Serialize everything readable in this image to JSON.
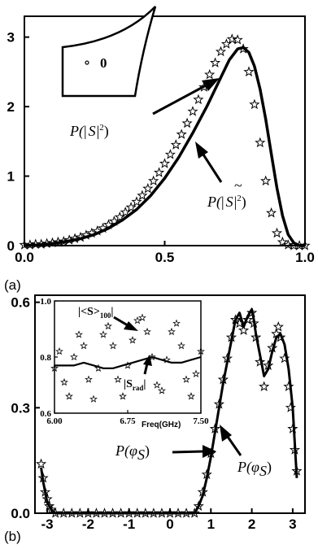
{
  "chart_data": [
    {
      "panel": "(a)",
      "type": "line",
      "xlim": [
        0.0,
        1.0
      ],
      "ylim": [
        0,
        3.3
      ],
      "xticks": [
        "0.0",
        "0.5",
        "1.0"
      ],
      "yticks": [
        "0",
        "1",
        "2",
        "3"
      ],
      "grid": false,
      "annotations": {
        "curve_label_1": [
          "P(",
          "|",
          "S",
          "|",
          "2",
          ")"
        ],
        "curve_label_2": [
          "P(",
          "|",
          "S",
          "|",
          "2",
          ")"
        ],
        "inset_label": "0",
        "tilde": "~"
      },
      "series": [
        {
          "style": "stars",
          "x": [
            0.0,
            0.02,
            0.04,
            0.06,
            0.08,
            0.1,
            0.12,
            0.14,
            0.16,
            0.18,
            0.2,
            0.22,
            0.24,
            0.26,
            0.28,
            0.3,
            0.32,
            0.34,
            0.36,
            0.38,
            0.4,
            0.42,
            0.44,
            0.46,
            0.48,
            0.5,
            0.52,
            0.54,
            0.56,
            0.58,
            0.6,
            0.62,
            0.64,
            0.66,
            0.68,
            0.7,
            0.72,
            0.74,
            0.76,
            0.78,
            0.8,
            0.82,
            0.84,
            0.86,
            0.88,
            0.9,
            0.92,
            0.94,
            0.96,
            0.98,
            1.0
          ],
          "y": [
            0.01,
            0.01,
            0.02,
            0.02,
            0.03,
            0.04,
            0.05,
            0.06,
            0.08,
            0.1,
            0.12,
            0.15,
            0.18,
            0.21,
            0.25,
            0.3,
            0.35,
            0.41,
            0.48,
            0.55,
            0.63,
            0.72,
            0.82,
            0.93,
            1.05,
            1.18,
            1.31,
            1.45,
            1.6,
            1.76,
            1.93,
            2.1,
            2.28,
            2.46,
            2.63,
            2.79,
            2.9,
            2.97,
            2.96,
            2.83,
            2.5,
            2.03,
            1.48,
            0.93,
            0.47,
            0.18,
            0.05,
            0.01,
            0.0,
            0.0,
            0.0
          ]
        },
        {
          "style": "solid",
          "x": [
            0.0,
            0.05,
            0.1,
            0.15,
            0.2,
            0.25,
            0.3,
            0.35,
            0.4,
            0.45,
            0.5,
            0.55,
            0.6,
            0.65,
            0.7,
            0.73,
            0.76,
            0.78,
            0.8,
            0.82,
            0.84,
            0.86,
            0.88,
            0.9,
            0.92,
            0.94,
            0.96,
            0.98,
            1.0
          ],
          "y": [
            0.0,
            0.01,
            0.03,
            0.06,
            0.1,
            0.16,
            0.25,
            0.37,
            0.52,
            0.72,
            0.97,
            1.27,
            1.62,
            2.0,
            2.42,
            2.67,
            2.83,
            2.85,
            2.78,
            2.58,
            2.25,
            1.82,
            1.32,
            0.83,
            0.43,
            0.16,
            0.04,
            0.0,
            0.0
          ]
        }
      ]
    },
    {
      "panel": "(b)",
      "type": "line",
      "xlim": [
        -3.3,
        3.3
      ],
      "ylim": [
        0.0,
        0.62
      ],
      "xticks": [
        "-3",
        "-2",
        "-1",
        "0",
        "1",
        "2",
        "3"
      ],
      "yticks": [
        "0.0",
        "0.3",
        "0.6"
      ],
      "grid": false,
      "annotations": {
        "phi_label_1": [
          "P(",
          "φ",
          "S",
          ")"
        ],
        "phi_label_2": [
          "P(",
          "φ",
          "S",
          ")"
        ]
      },
      "series": [
        {
          "style": "stars",
          "x": [
            -3.15,
            -3.1,
            -3.05,
            -3.0,
            -2.95,
            -2.9,
            -2.8,
            -2.6,
            -2.4,
            -2.2,
            -2.0,
            -1.8,
            -1.6,
            -1.4,
            -1.2,
            -1.0,
            -0.8,
            -0.6,
            -0.4,
            -0.2,
            0.0,
            0.2,
            0.4,
            0.6,
            0.7,
            0.8,
            0.9,
            1.0,
            1.1,
            1.2,
            1.3,
            1.4,
            1.5,
            1.6,
            1.7,
            1.8,
            1.9,
            2.0,
            2.05,
            2.1,
            2.2,
            2.3,
            2.4,
            2.5,
            2.6,
            2.65,
            2.7,
            2.8,
            2.9,
            2.95,
            3.0,
            3.05,
            3.1
          ],
          "y": [
            0.14,
            0.1,
            0.06,
            0.04,
            0.02,
            0.01,
            0.0,
            0.0,
            0.0,
            0.0,
            0.0,
            0.0,
            0.0,
            0.0,
            0.0,
            0.0,
            0.0,
            0.0,
            0.0,
            0.0,
            0.0,
            0.0,
            0.0,
            0.0,
            0.02,
            0.06,
            0.11,
            0.17,
            0.24,
            0.31,
            0.38,
            0.44,
            0.5,
            0.55,
            0.54,
            0.52,
            0.55,
            0.57,
            0.54,
            0.5,
            0.43,
            0.36,
            0.42,
            0.47,
            0.51,
            0.53,
            0.5,
            0.44,
            0.36,
            0.3,
            0.24,
            0.18,
            0.12
          ]
        },
        {
          "style": "solid",
          "x": [
            -3.15,
            -3.1,
            -3.05,
            -3.0,
            -2.95,
            -2.9,
            -2.8,
            -2.6,
            -2.4,
            -2.0,
            -1.5,
            -1.0,
            -0.5,
            0.0,
            0.4,
            0.6,
            0.7,
            0.8,
            0.9,
            1.0,
            1.1,
            1.2,
            1.3,
            1.4,
            1.5,
            1.6,
            1.7,
            1.8,
            1.9,
            2.0,
            2.05,
            2.1,
            2.2,
            2.3,
            2.4,
            2.5,
            2.6,
            2.7,
            2.8,
            2.9,
            3.0,
            3.05,
            3.1
          ],
          "y": [
            0.13,
            0.09,
            0.06,
            0.03,
            0.02,
            0.01,
            0.0,
            0.0,
            0.0,
            0.0,
            0.0,
            0.0,
            0.0,
            0.0,
            0.0,
            0.0,
            0.02,
            0.05,
            0.1,
            0.16,
            0.23,
            0.3,
            0.37,
            0.43,
            0.49,
            0.55,
            0.57,
            0.53,
            0.56,
            0.58,
            0.55,
            0.51,
            0.45,
            0.39,
            0.41,
            0.46,
            0.5,
            0.51,
            0.48,
            0.41,
            0.3,
            0.2,
            0.1
          ]
        }
      ],
      "inset": {
        "type": "line",
        "xlim": [
          6.0,
          7.5
        ],
        "ylim": [
          0.6,
          1.0
        ],
        "xticks": [
          "6.00",
          "6.75",
          "7.50"
        ],
        "yticks": [
          "0.6",
          "0.8",
          "1.0"
        ],
        "xlabel": "Freq(GHz)",
        "annotations": {
          "avg_label": [
            "|<S>",
            "100",
            "|"
          ],
          "rad_label": [
            "|S",
            "rad",
            "|"
          ]
        },
        "series": [
          {
            "style": "stars",
            "x": [
              6.0,
              6.05,
              6.1,
              6.15,
              6.2,
              6.25,
              6.3,
              6.35,
              6.4,
              6.45,
              6.5,
              6.55,
              6.6,
              6.65,
              6.7,
              6.75,
              6.8,
              6.85,
              6.9,
              6.95,
              7.0,
              7.05,
              7.1,
              7.15,
              7.2,
              7.25,
              7.3,
              7.35,
              7.4,
              7.45,
              7.5
            ],
            "y": [
              0.76,
              0.82,
              0.71,
              0.66,
              0.8,
              0.88,
              0.84,
              0.72,
              0.65,
              0.76,
              0.88,
              0.91,
              0.84,
              0.72,
              0.66,
              0.77,
              0.86,
              0.93,
              0.94,
              0.89,
              0.8,
              0.7,
              0.68,
              0.79,
              0.89,
              0.92,
              0.84,
              0.72,
              0.66,
              0.74,
              0.82
            ]
          },
          {
            "style": "solid",
            "x": [
              6.0,
              6.1,
              6.2,
              6.3,
              6.4,
              6.5,
              6.6,
              6.7,
              6.8,
              6.9,
              7.0,
              7.1,
              7.2,
              7.3,
              7.4,
              7.5
            ],
            "y": [
              0.77,
              0.77,
              0.77,
              0.78,
              0.77,
              0.76,
              0.76,
              0.77,
              0.78,
              0.79,
              0.8,
              0.79,
              0.78,
              0.78,
              0.79,
              0.8
            ]
          }
        ]
      }
    }
  ]
}
